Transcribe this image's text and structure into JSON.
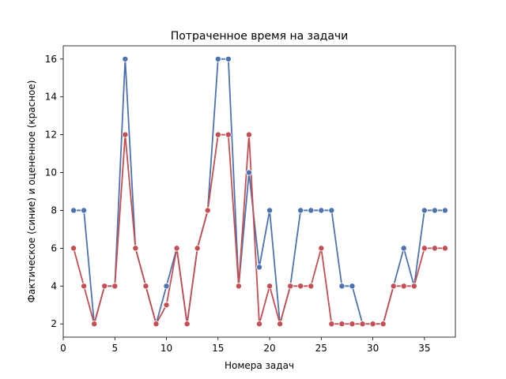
{
  "chart_data": {
    "type": "line",
    "title": "Потраченное время на задачи",
    "xlabel": "Номера задач",
    "ylabel": "Фактическое (синие) и оцененное (красное)",
    "xlim": [
      0,
      38
    ],
    "ylim": [
      1.3,
      16.7
    ],
    "xticks": [
      0,
      5,
      10,
      15,
      20,
      25,
      30,
      35
    ],
    "yticks": [
      2,
      4,
      6,
      8,
      10,
      12,
      14,
      16
    ],
    "grid": false,
    "legend": "none",
    "x": [
      1,
      2,
      3,
      4,
      5,
      6,
      7,
      8,
      9,
      10,
      11,
      12,
      13,
      14,
      15,
      16,
      17,
      18,
      19,
      20,
      21,
      22,
      23,
      24,
      25,
      26,
      27,
      28,
      29,
      30,
      31,
      32,
      33,
      34,
      35,
      36,
      37
    ],
    "series": [
      {
        "color": "#4c72b0",
        "values": [
          8,
          8,
          2,
          4,
          4,
          16,
          6,
          4,
          2,
          4,
          6,
          2,
          6,
          8,
          16,
          16,
          4,
          10,
          5,
          8,
          2,
          4,
          8,
          8,
          8,
          8,
          4,
          4,
          2,
          2,
          2,
          4,
          6,
          4,
          8,
          8,
          8
        ]
      },
      {
        "color": "#c44e52",
        "values": [
          6,
          4,
          2,
          4,
          4,
          12,
          6,
          4,
          2,
          3,
          6,
          2,
          6,
          8,
          12,
          12,
          4,
          12,
          2,
          4,
          2,
          4,
          4,
          4,
          6,
          2,
          2,
          2,
          2,
          2,
          2,
          4,
          4,
          4,
          6,
          6,
          6
        ]
      }
    ]
  }
}
